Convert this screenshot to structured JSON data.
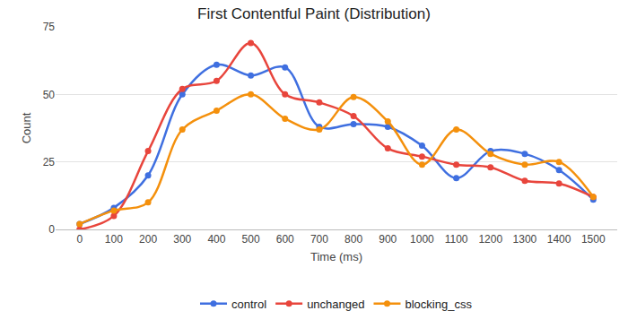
{
  "chart_data": {
    "type": "line",
    "title": "First Contentful Paint (Distribution)",
    "x_label": "Time (ms)",
    "y_label": "Count",
    "x": [
      0,
      100,
      200,
      300,
      400,
      500,
      600,
      700,
      800,
      900,
      1000,
      1100,
      1200,
      1300,
      1400,
      1500
    ],
    "series": [
      {
        "name": "control",
        "color": "#3f6fe0",
        "values": [
          2,
          8,
          20,
          50,
          61,
          57,
          60,
          38,
          39,
          38,
          31,
          19,
          29,
          28,
          22,
          11
        ]
      },
      {
        "name": "unchanged",
        "color": "#e8453c",
        "values": [
          0,
          5,
          29,
          52,
          55,
          69,
          50,
          47,
          42,
          30,
          27,
          24,
          23,
          18,
          17,
          12
        ]
      },
      {
        "name": "blocking_css",
        "color": "#f4900c",
        "values": [
          2,
          7,
          10,
          37,
          44,
          50,
          41,
          37,
          49,
          40,
          24,
          37,
          28,
          24,
          25,
          12
        ]
      }
    ],
    "xlim": [
      -70,
      1570
    ],
    "xticks": [
      0,
      100,
      200,
      300,
      400,
      500,
      600,
      700,
      800,
      900,
      1000,
      1100,
      1200,
      1300,
      1400,
      1500
    ],
    "ylim": [
      0,
      75
    ],
    "yticks": [
      0,
      25,
      50,
      75
    ],
    "grid": true,
    "legend": "bottom",
    "marker": "circle",
    "line_style": "smooth"
  }
}
